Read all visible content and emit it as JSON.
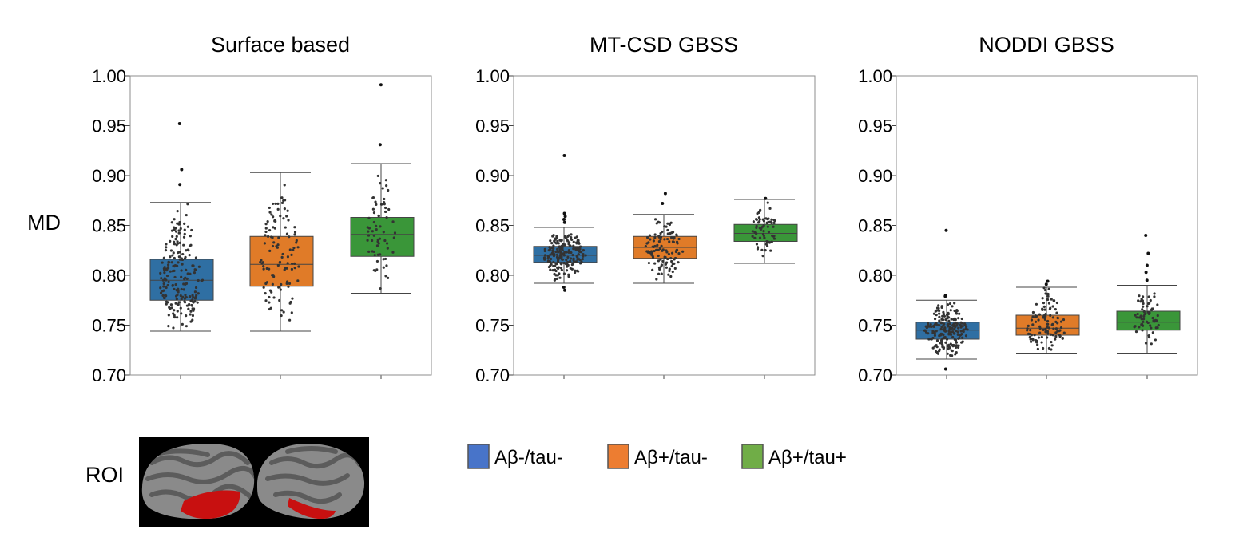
{
  "figure": {
    "ylabel": "MD",
    "roi_label": "ROI"
  },
  "colors": {
    "blue": "#2f6fa3",
    "orange": "#e07b28",
    "green": "#3a9639",
    "legend_blue": "#4874c9",
    "legend_orange": "#ed7d31",
    "legend_green": "#70ad47",
    "roi_highlight": "#c81010",
    "brain_surface": "#8a8a8a"
  },
  "legend": [
    {
      "label": "Aβ-/tau-",
      "color_key": "legend_blue"
    },
    {
      "label": "Aβ+/tau-",
      "color_key": "legend_orange"
    },
    {
      "label": "Aβ+/tau+",
      "color_key": "legend_green"
    }
  ],
  "chart_data": [
    {
      "type": "box",
      "title": "Surface based",
      "ylabel": "MD",
      "ylim": [
        0.7,
        1.0
      ],
      "yticks": [
        "0.70",
        "0.75",
        "0.80",
        "0.85",
        "0.90",
        "0.95",
        "1.00"
      ],
      "grid": false,
      "series": [
        {
          "name": "Aβ-/tau-",
          "color_key": "blue",
          "n": 200,
          "q1": 0.775,
          "median": 0.795,
          "q3": 0.816,
          "whisker_low": 0.744,
          "whisker_high": 0.873,
          "outliers": [
            0.891,
            0.906,
            0.952
          ]
        },
        {
          "name": "Aβ+/tau-",
          "color_key": "orange",
          "n": 110,
          "q1": 0.789,
          "median": 0.811,
          "q3": 0.839,
          "whisker_low": 0.744,
          "whisker_high": 0.903,
          "outliers": []
        },
        {
          "name": "Aβ+/tau+",
          "color_key": "green",
          "n": 65,
          "q1": 0.819,
          "median": 0.841,
          "q3": 0.858,
          "whisker_low": 0.782,
          "whisker_high": 0.912,
          "outliers": [
            0.931,
            0.991
          ]
        }
      ]
    },
    {
      "type": "box",
      "title": "MT-CSD GBSS",
      "ylim": [
        0.7,
        1.0
      ],
      "yticks": [
        "0.70",
        "0.75",
        "0.80",
        "0.85",
        "0.90",
        "0.95",
        "1.00"
      ],
      "grid": false,
      "series": [
        {
          "name": "Aβ-/tau-",
          "color_key": "blue",
          "n": 200,
          "q1": 0.813,
          "median": 0.82,
          "q3": 0.829,
          "whisker_low": 0.792,
          "whisker_high": 0.848,
          "outliers": [
            0.785,
            0.788,
            0.853,
            0.856,
            0.859,
            0.862,
            0.92
          ]
        },
        {
          "name": "Aβ+/tau-",
          "color_key": "orange",
          "n": 110,
          "q1": 0.817,
          "median": 0.828,
          "q3": 0.839,
          "whisker_low": 0.792,
          "whisker_high": 0.861,
          "outliers": [
            0.872,
            0.882
          ]
        },
        {
          "name": "Aβ+/tau+",
          "color_key": "green",
          "n": 65,
          "q1": 0.834,
          "median": 0.842,
          "q3": 0.851,
          "whisker_low": 0.812,
          "whisker_high": 0.876,
          "outliers": [
            0.877
          ]
        }
      ]
    },
    {
      "type": "box",
      "title": "NODDI GBSS",
      "ylim": [
        0.7,
        1.0
      ],
      "yticks": [
        "0.70",
        "0.75",
        "0.80",
        "0.85",
        "0.90",
        "0.95",
        "1.00"
      ],
      "grid": false,
      "series": [
        {
          "name": "Aβ-/tau-",
          "color_key": "blue",
          "n": 200,
          "q1": 0.736,
          "median": 0.745,
          "q3": 0.753,
          "whisker_low": 0.716,
          "whisker_high": 0.775,
          "outliers": [
            0.706,
            0.779,
            0.78,
            0.845
          ]
        },
        {
          "name": "Aβ+/tau-",
          "color_key": "orange",
          "n": 110,
          "q1": 0.74,
          "median": 0.747,
          "q3": 0.76,
          "whisker_low": 0.722,
          "whisker_high": 0.788,
          "outliers": [
            0.791,
            0.794
          ]
        },
        {
          "name": "Aβ+/tau+",
          "color_key": "green",
          "n": 65,
          "q1": 0.745,
          "median": 0.753,
          "q3": 0.764,
          "whisker_low": 0.722,
          "whisker_high": 0.79,
          "outliers": [
            0.795,
            0.803,
            0.81,
            0.822,
            0.84
          ]
        }
      ]
    }
  ]
}
